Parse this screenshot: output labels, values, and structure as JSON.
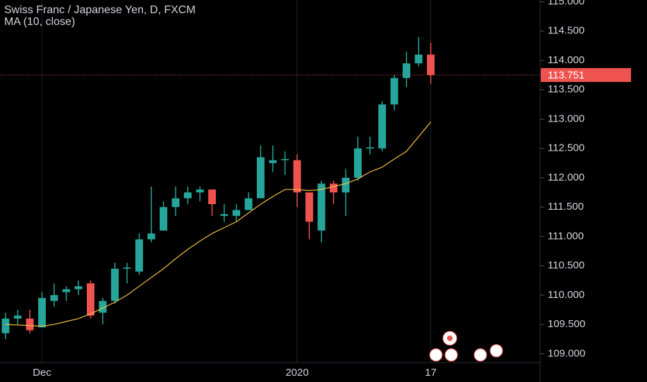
{
  "chart_data": {
    "type": "candlestick",
    "title": "Swiss Franc / Japanese Yen, D, FXCM",
    "categories": [
      null,
      null,
      null,
      "Dec",
      null,
      null,
      null,
      null,
      null,
      null,
      null,
      null,
      null,
      null,
      null,
      null,
      null,
      null,
      null,
      null,
      null,
      null,
      null,
      null,
      "2020",
      null,
      null,
      null,
      null,
      null,
      null,
      null,
      null,
      null,
      null,
      "17"
    ],
    "open": [
      109.35,
      109.6,
      109.6,
      109.45,
      109.9,
      110.05,
      110.1,
      110.2,
      109.7,
      109.9,
      110.45,
      110.4,
      110.95,
      111.1,
      111.5,
      111.65,
      111.75,
      111.8,
      111.35,
      111.35,
      111.45,
      111.65,
      112.25,
      112.3,
      112.3,
      111.75,
      111.1,
      111.9,
      111.75,
      112.0,
      112.5,
      112.5,
      113.25,
      113.7,
      113.95,
      114.1
    ],
    "high": [
      109.7,
      109.75,
      109.75,
      110.05,
      110.2,
      110.15,
      110.25,
      110.25,
      109.95,
      110.55,
      110.55,
      111.05,
      111.85,
      111.6,
      111.85,
      111.85,
      111.85,
      111.8,
      111.55,
      111.55,
      111.75,
      112.55,
      112.55,
      112.45,
      112.4,
      111.75,
      111.95,
      111.95,
      112.15,
      112.7,
      112.7,
      113.3,
      113.75,
      114.15,
      114.4,
      114.3
    ],
    "low": [
      109.25,
      109.5,
      109.35,
      109.45,
      109.8,
      109.9,
      110.0,
      109.6,
      109.5,
      109.85,
      110.2,
      110.35,
      110.9,
      111.1,
      111.35,
      111.55,
      111.6,
      111.35,
      111.25,
      111.25,
      111.45,
      111.65,
      112.1,
      112.05,
      111.5,
      110.95,
      110.9,
      111.55,
      111.35,
      111.95,
      112.4,
      112.45,
      113.15,
      113.55,
      113.9,
      113.6
    ],
    "close": [
      109.6,
      109.65,
      109.4,
      109.95,
      110.0,
      110.1,
      110.15,
      109.65,
      109.9,
      110.45,
      110.47,
      110.95,
      111.05,
      111.5,
      111.65,
      111.75,
      111.8,
      111.55,
      111.38,
      111.45,
      111.65,
      112.35,
      112.3,
      112.32,
      111.75,
      111.25,
      111.9,
      111.75,
      112.0,
      112.5,
      112.52,
      113.25,
      113.7,
      113.95,
      114.1,
      113.751
    ],
    "up_color": "#26a69a",
    "down_color": "#ef5350",
    "series": [
      {
        "name": "MA (10, close)",
        "color": "#f5c242",
        "values": [
          109.5,
          109.49,
          109.48,
          109.47,
          109.5,
          109.55,
          109.6,
          109.68,
          109.78,
          109.88,
          110.0,
          110.15,
          110.3,
          110.45,
          110.62,
          110.78,
          110.92,
          111.05,
          111.15,
          111.25,
          111.4,
          111.55,
          111.68,
          111.8,
          111.8,
          111.78,
          111.8,
          111.85,
          111.9,
          111.98,
          112.1,
          112.18,
          112.32,
          112.45,
          112.7,
          112.95
        ]
      }
    ],
    "ylim": [
      108.85,
      115.03
    ],
    "yticks": [
      {
        "value": 109,
        "label": "109.000"
      },
      {
        "value": 109.5,
        "label": "109.500"
      },
      {
        "value": 110,
        "label": "110.000"
      },
      {
        "value": 110.5,
        "label": "110.500"
      },
      {
        "value": 111,
        "label": "111.000"
      },
      {
        "value": 111.5,
        "label": "111.500"
      },
      {
        "value": 112,
        "label": "112.000"
      },
      {
        "value": 112.5,
        "label": "112.500"
      },
      {
        "value": 113,
        "label": "113.000"
      },
      {
        "value": 113.5,
        "label": "113.500"
      },
      {
        "value": 114,
        "label": "114.000"
      },
      {
        "value": 114.5,
        "label": "114.500"
      },
      {
        "value": 115,
        "label": "115.000"
      }
    ]
  }
}
